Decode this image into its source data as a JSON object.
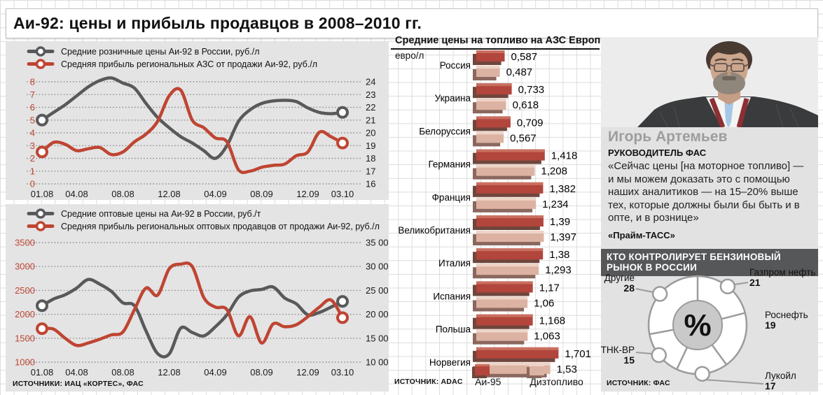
{
  "title": "Аи-92: цены и прибыль продавцов в 2008–2010 гг.",
  "palette": {
    "red": "#bf4532",
    "gray": "#58595b",
    "outline_gray": "#9b9b9b"
  },
  "charts_source": "ИСТОЧНИКИ: ИАЦ «КОРТЕС», ФАС",
  "person": {
    "name": "Игорь Артемьев",
    "role": "РУКОВОДИТЕЛЬ ФАС",
    "quote": "«Сейчас цены [на моторное топливо] — и мы можем доказать это с помощью наших аналитиков — на 15–20% выше тех, которые должны были бы быть и в опте, и в рознице»",
    "attribution": "«Прайм-ТАСС»"
  },
  "chart_data": [
    {
      "id": "retail",
      "type": "line",
      "n_points": 27,
      "legend": [
        {
          "label": "Средние розничные цены  Аи-92 в России, руб./л",
          "color": "#58595b"
        },
        {
          "label": "Средняя прибыль региональных АЗС от продажи Аи-92, руб./л",
          "color": "#bf4532"
        }
      ],
      "x_tick_labels": [
        "01.08",
        "04.08",
        "08.08",
        "12.08",
        "04.09",
        "08.09",
        "12.09",
        "03.10"
      ],
      "x_tick_indices": [
        0,
        3,
        7,
        11,
        15,
        19,
        23,
        26
      ],
      "left_axis": {
        "min": 0,
        "max": 8,
        "ticks": [
          0,
          1,
          2,
          3,
          4,
          5,
          6,
          7,
          8
        ]
      },
      "right_axis": {
        "min": 16,
        "max": 24,
        "tick_labels": [
          "16",
          "17",
          "18",
          "19",
          "20",
          "21",
          "22",
          "23",
          "24"
        ]
      },
      "series": [
        {
          "name": "Средние розничные цены Аи-92",
          "axis": "right",
          "color": "#58595b",
          "values": [
            21.0,
            21.6,
            22.2,
            22.9,
            23.6,
            24.1,
            24.3,
            23.9,
            23.5,
            22.3,
            21.2,
            20.4,
            19.7,
            19.2,
            18.6,
            18.0,
            19.0,
            20.9,
            21.8,
            22.3,
            22.5,
            22.55,
            22.45,
            21.95,
            21.6,
            21.5,
            21.6
          ]
        },
        {
          "name": "Средняя прибыль региональных АЗС",
          "axis": "left",
          "color": "#bf4532",
          "values": [
            2.5,
            3.25,
            3.1,
            2.6,
            2.75,
            2.85,
            2.3,
            2.5,
            3.3,
            3.9,
            4.9,
            6.9,
            7.35,
            5.0,
            4.4,
            3.6,
            3.3,
            1.1,
            1.0,
            1.3,
            1.45,
            1.55,
            2.2,
            2.5,
            4.05,
            3.7,
            3.2
          ]
        }
      ]
    },
    {
      "id": "wholesale",
      "type": "line",
      "n_points": 27,
      "legend": [
        {
          "label": "Средние оптовые цены на Аи-92 в России, руб./т",
          "color": "#58595b"
        },
        {
          "label": "Средняя прибыль региональных оптовых продавцов от продажи Аи-92, руб./л",
          "color": "#bf4532"
        }
      ],
      "x_tick_labels": [
        "01.08",
        "04.08",
        "08.08",
        "12.08",
        "04.09",
        "08.09",
        "12.09",
        "03.10"
      ],
      "x_tick_indices": [
        0,
        3,
        7,
        11,
        15,
        19,
        23,
        26
      ],
      "left_axis": {
        "min": 1000,
        "max": 3500,
        "ticks": [
          1000,
          1500,
          2000,
          2500,
          3000,
          3500
        ]
      },
      "right_axis": {
        "min": 10000,
        "max": 35000,
        "tick_labels": [
          "10 000",
          "15 000",
          "20 000",
          "25 000",
          "30 000",
          "35 000"
        ]
      },
      "series": [
        {
          "name": "Средние оптовые цены на Аи-92",
          "axis": "right",
          "color": "#58595b",
          "values": [
            21800,
            23200,
            24100,
            25500,
            27300,
            26300,
            24800,
            22400,
            21800,
            16500,
            11800,
            11700,
            17100,
            16200,
            15500,
            17400,
            19900,
            23600,
            24900,
            25200,
            25700,
            23400,
            22200,
            19900,
            20400,
            21500,
            22700
          ]
        },
        {
          "name": "Средняя прибыль региональных оптовых продавцов",
          "axis": "left",
          "color": "#bf4532",
          "values": [
            1700,
            1690,
            1500,
            1350,
            1400,
            1480,
            1570,
            1630,
            2100,
            2550,
            2400,
            2950,
            3050,
            3000,
            2350,
            2150,
            2100,
            1550,
            1950,
            1400,
            1800,
            1740,
            1780,
            1950,
            2150,
            2300,
            1930
          ]
        }
      ]
    },
    {
      "id": "europe-fuel",
      "type": "bar",
      "title": "Средние цены на топливо на АЗС Европы",
      "unit": "евро/л",
      "source": "ИСТОЧНИК: ADAC",
      "categories": [
        "Россия",
        "Украина",
        "Белоруссия",
        "Германия",
        "Франция",
        "Великобритания",
        "Италия",
        "Испания",
        "Польша",
        "Норвегия"
      ],
      "series": [
        {
          "name": "Аи-95",
          "color": "#b2453c",
          "highlight": "#c96f60",
          "shadow": "#6f463c",
          "values": [
            0.587,
            0.733,
            0.709,
            1.418,
            1.382,
            1.39,
            1.38,
            1.17,
            1.168,
            1.701
          ],
          "labels": [
            "0,587",
            "0,733",
            "0,709",
            "1,418",
            "1,382",
            "1,39",
            "1,38",
            "1,17",
            "1,168",
            "1,701"
          ]
        },
        {
          "name": "Дизтопливо",
          "color": "#dcb2a3",
          "highlight": "#edd3c6",
          "shadow": "#8a685e",
          "values": [
            0.487,
            0.618,
            0.567,
            1.208,
            1.234,
            1.397,
            1.293,
            1.06,
            1.063,
            1.53
          ],
          "labels": [
            "0,487",
            "0,618",
            "0,567",
            "1,208",
            "1,234",
            "1,397",
            "1,293",
            "1,06",
            "1,063",
            "1,53"
          ]
        }
      ]
    },
    {
      "id": "market-control",
      "type": "pie",
      "title": "КТО КОНТРОЛИРУЕТ БЕНЗИНОВЫЙ РЫНОК В РОССИИ",
      "center_label": "%",
      "source": "ИСТОЧНИК: ФАС",
      "slices": [
        {
          "label": "Газпром нефть",
          "value": 21
        },
        {
          "label": "Роснефть",
          "value": 19
        },
        {
          "label": "Лукойл",
          "value": 17
        },
        {
          "label": "ТНК-ВР",
          "value": 15
        },
        {
          "label": "Другие",
          "value": 28
        }
      ]
    }
  ]
}
